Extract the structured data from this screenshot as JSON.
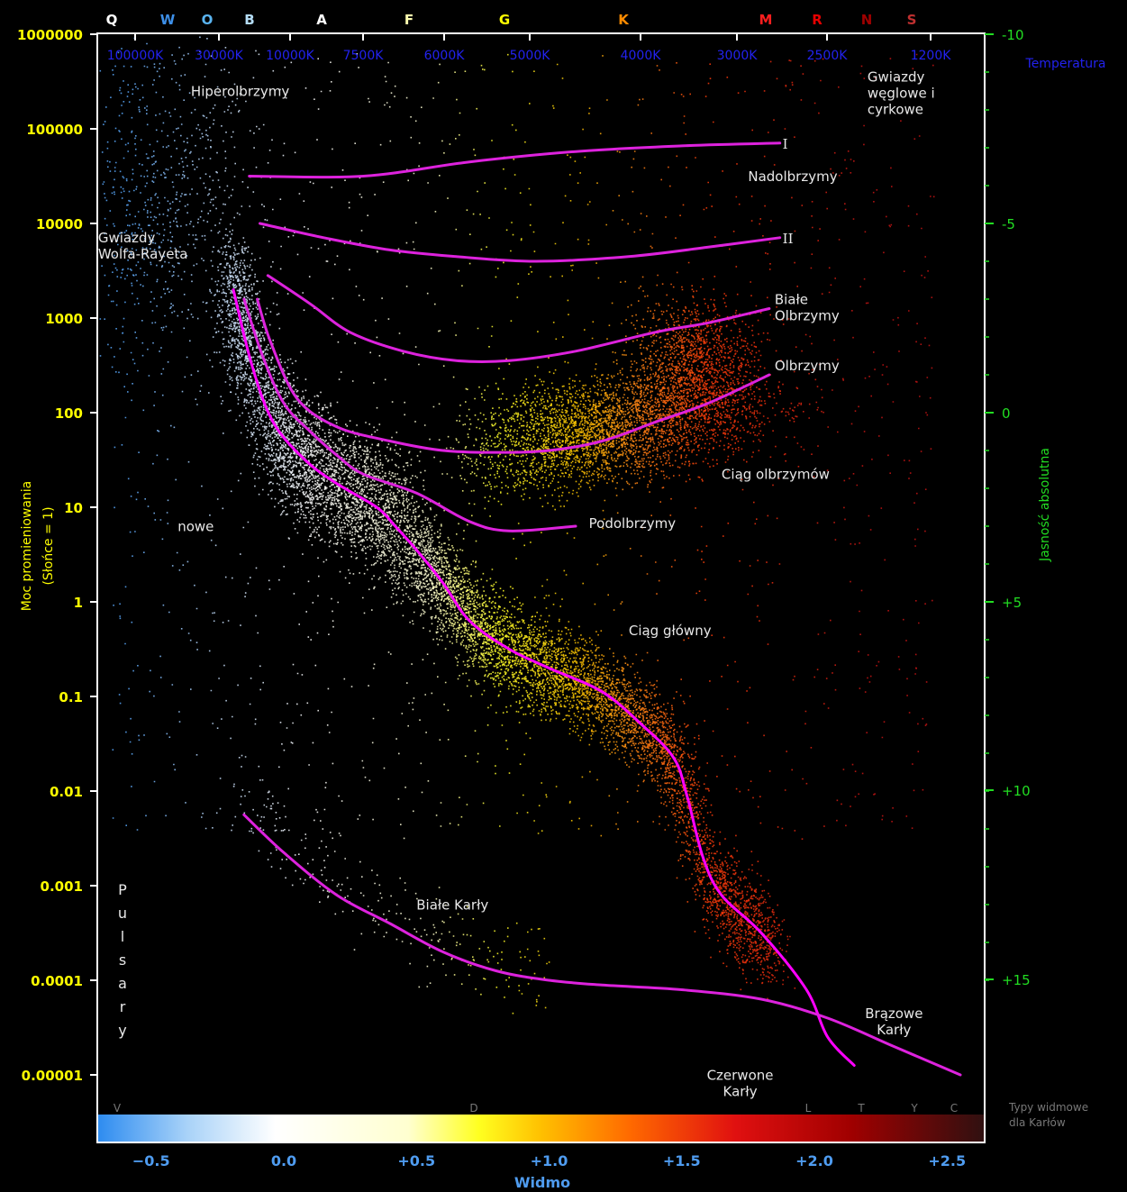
{
  "chart_data": {
    "type": "scatter",
    "spectral_classes": [
      {
        "label": "Q",
        "color": "#ffffff"
      },
      {
        "label": "W",
        "color": "#3d8fe8"
      },
      {
        "label": "O",
        "color": "#5ab4f0"
      },
      {
        "label": "B",
        "color": "#b4dcf5"
      },
      {
        "label": "A",
        "color": "#ffffff"
      },
      {
        "label": "F",
        "color": "#ffffb0"
      },
      {
        "label": "G",
        "color": "#ffff00"
      },
      {
        "label": "K",
        "color": "#ff8c00"
      },
      {
        "label": "M",
        "color": "#ff1e1e"
      },
      {
        "label": "R",
        "color": "#e60000"
      },
      {
        "label": "N",
        "color": "#a00000"
      },
      {
        "label": "S",
        "color": "#c03030"
      }
    ],
    "temperature_ticks": [
      "100000K",
      "30000K",
      "10000K",
      "7500K",
      "6000K",
      "5000K",
      "4000K",
      "3000K",
      "2500K",
      "1200K"
    ],
    "temperature_label": "Temperatura",
    "luminosity_ticks": [
      "1000000",
      "100000",
      "10000",
      "1000",
      "100",
      "10",
      "1",
      "0.1",
      "0.01",
      "0.001",
      "0.0001",
      "0.00001"
    ],
    "luminosity_label_line1": "Moc promieniowania",
    "luminosity_label_line2": "(Słońce = 1)",
    "magnitude_ticks": [
      "-10",
      "-5",
      "0",
      "+5",
      "+10",
      "+15"
    ],
    "magnitude_label": "Jasność absolutna",
    "x_ticks": [
      "−0.5",
      "0.0",
      "+0.5",
      "+1.0",
      "+1.5",
      "+2.0",
      "+2.5"
    ],
    "xlabel": "Widmo",
    "xlim": [
      -0.7,
      2.6
    ],
    "ylim_log10": [
      -5.5,
      6
    ],
    "dwarf_classes": [
      "V",
      "D",
      "L",
      "T",
      "Y",
      "C"
    ],
    "dwarf_types_label": "Typy widmowe dla Karłów",
    "series": [
      {
        "name": "I",
        "x": [
          -0.13,
          0.3,
          0.7,
          1.1,
          1.5,
          1.87
        ],
        "logL": [
          4.5,
          4.5,
          4.65,
          4.76,
          4.82,
          4.85
        ]
      },
      {
        "name": "II",
        "x": [
          -0.09,
          0.15,
          0.4,
          0.65,
          0.95,
          1.3,
          1.6,
          1.87
        ],
        "logL": [
          4.0,
          3.85,
          3.72,
          3.65,
          3.6,
          3.65,
          3.75,
          3.85
        ]
      },
      {
        "name": "Białe Olbrzymy",
        "x": [
          -0.06,
          0.1,
          0.25,
          0.45,
          0.65,
          0.85,
          1.1,
          1.4,
          1.6,
          1.83
        ],
        "logL": [
          3.45,
          3.15,
          2.85,
          2.65,
          2.55,
          2.55,
          2.65,
          2.85,
          2.95,
          3.1
        ]
      },
      {
        "name": "Olbrzymy",
        "x": [
          -0.1,
          -0.05,
          0.05,
          0.2,
          0.4,
          0.6,
          0.8,
          1.0,
          1.2,
          1.4,
          1.6,
          1.83
        ],
        "logL": [
          3.2,
          2.75,
          2.15,
          1.85,
          1.7,
          1.6,
          1.58,
          1.6,
          1.7,
          1.9,
          2.1,
          2.4
        ]
      },
      {
        "name": "Podolbrzymy",
        "x": [
          -0.15,
          -0.08,
          0.0,
          0.1,
          0.2,
          0.3,
          0.5,
          0.7,
          0.85,
          1.1
        ],
        "logL": [
          3.2,
          2.6,
          2.1,
          1.8,
          1.55,
          1.35,
          1.15,
          0.85,
          0.75,
          0.8
        ]
      },
      {
        "name": "Ciąg główny",
        "x": [
          -0.19,
          -0.12,
          -0.04,
          0.08,
          0.2,
          0.35,
          0.42,
          0.5,
          0.6,
          0.7,
          0.85,
          1.0,
          1.2,
          1.35,
          1.47,
          1.52,
          1.58,
          1.65,
          1.8,
          1.97,
          2.05,
          2.15
        ],
        "logL": [
          3.3,
          2.5,
          1.9,
          1.5,
          1.25,
          1.0,
          0.8,
          0.55,
          0.2,
          -0.2,
          -0.5,
          -0.7,
          -0.95,
          -1.3,
          -1.65,
          -2.05,
          -2.7,
          -3.1,
          -3.5,
          -4.1,
          -4.6,
          -4.9
        ],
        "color": "#ff00ff"
      },
      {
        "name": "Białe Karły",
        "x": [
          -0.15,
          0.0,
          0.2,
          0.4,
          0.6,
          0.8,
          1.0,
          1.2,
          1.5,
          1.8,
          2.05,
          2.3,
          2.55
        ],
        "logL": [
          -2.25,
          -2.65,
          -3.1,
          -3.4,
          -3.7,
          -3.9,
          -4.0,
          -4.05,
          -4.1,
          -4.2,
          -4.4,
          -4.7,
          -5.0
        ]
      }
    ],
    "annotations": [
      {
        "text_lines": [
          "Hiperolbrzymy"
        ],
        "x": -0.35,
        "logL": 5.35
      },
      {
        "text_lines": [
          "Gwiazdy",
          "węglowe i",
          "cyrkowe"
        ],
        "x": 2.2,
        "logL": 5.5
      },
      {
        "text_lines": [
          "Nadolbrzymy"
        ],
        "x": 1.75,
        "logL": 4.45
      },
      {
        "text_lines": [
          "Gwiazdy",
          "Wolfa-Rayeta"
        ],
        "x": -0.7,
        "logL": 3.8
      },
      {
        "text_lines": [
          "Białe",
          "Olbrzymy"
        ],
        "x": 1.85,
        "logL": 3.15
      },
      {
        "text_lines": [
          "Olbrzymy"
        ],
        "x": 1.85,
        "logL": 2.45
      },
      {
        "text_lines": [
          "Ciąg olbrzymów"
        ],
        "x": 1.65,
        "logL": 1.3
      },
      {
        "text_lines": [
          "Podolbrzymy"
        ],
        "x": 1.15,
        "logL": 0.78
      },
      {
        "text_lines": [
          "nowe"
        ],
        "x": -0.4,
        "logL": 0.75
      },
      {
        "text_lines": [
          "Ciąg główny"
        ],
        "x": 1.3,
        "logL": -0.35
      },
      {
        "text_lines": [
          "Białe Karły"
        ],
        "x": 0.5,
        "logL": -3.25
      },
      {
        "text_lines": [
          "Brązowe",
          "Karły"
        ],
        "x": 2.3,
        "logL": -4.4
      },
      {
        "text_lines": [
          "Czerwone",
          "Karły"
        ],
        "x": 1.72,
        "logL": -5.05
      }
    ],
    "pulsars_letters": [
      "P",
      "u",
      "l",
      "s",
      "a",
      "r",
      "y"
    ],
    "grid": false,
    "background": "#000000"
  }
}
